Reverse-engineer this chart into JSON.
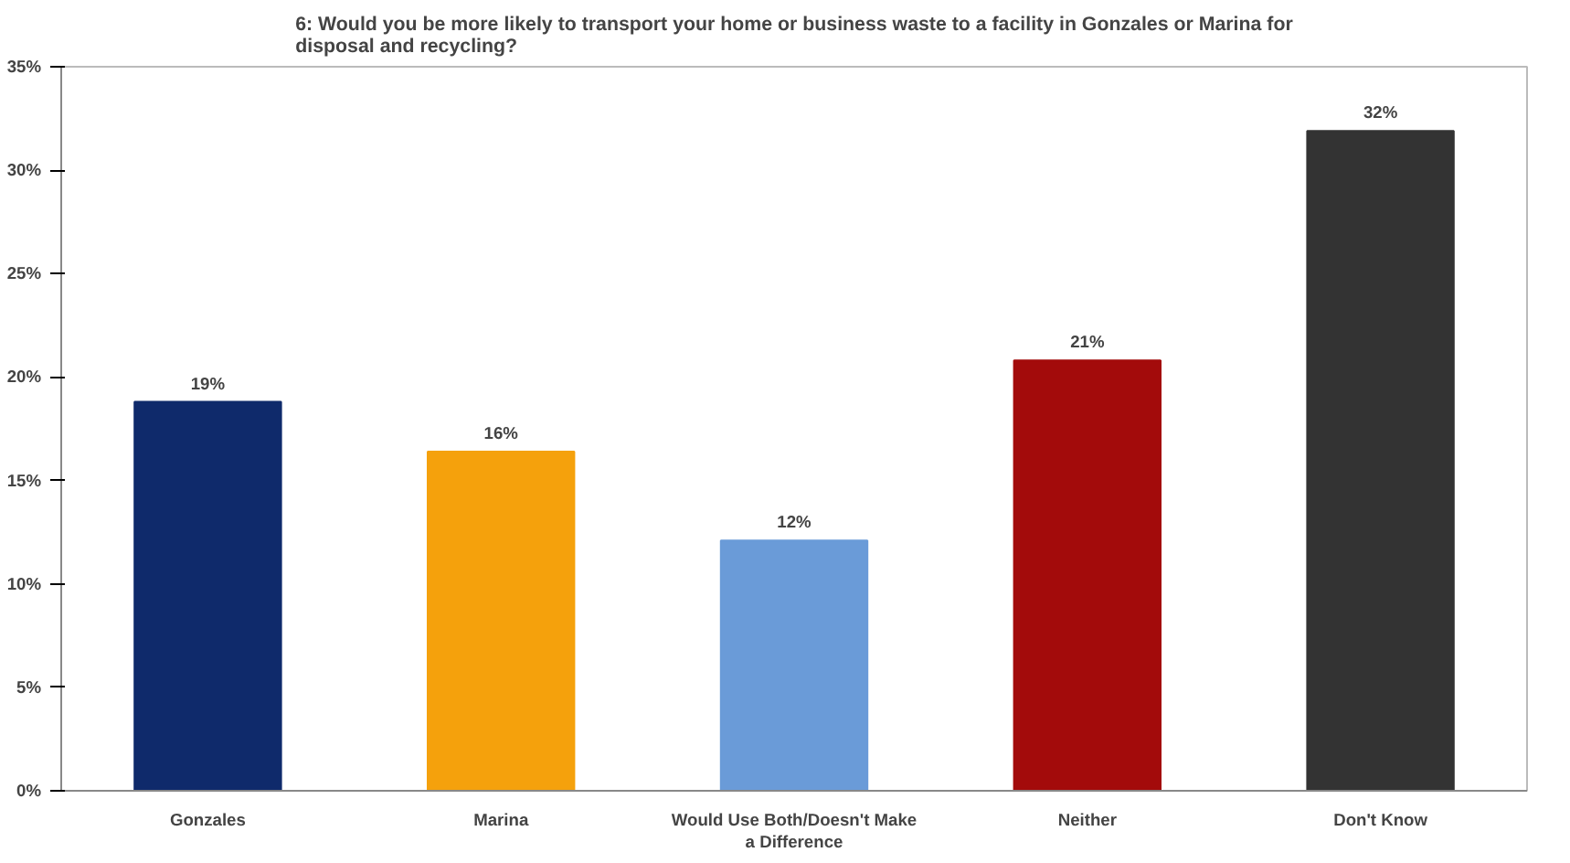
{
  "chart_data": {
    "type": "bar",
    "title": "6: Would you be more likely to transport your home or business waste to a facility in Gonzales or Marina for disposal and recycling?",
    "categories": [
      "Gonzales",
      "Marina",
      "Would Use Both/Doesn't Make a Difference",
      "Neither",
      "Don't Know"
    ],
    "values": [
      18.8,
      16.4,
      12.1,
      20.8,
      31.9
    ],
    "value_labels": [
      "19%",
      "16%",
      "12%",
      "21%",
      "32%"
    ],
    "colors": [
      "#0f2a6b",
      "#f5a10c",
      "#6a9bd8",
      "#a30b0b",
      "#333333"
    ],
    "ylim": [
      0,
      35
    ],
    "yticks": [
      {
        "value": 0,
        "label": "0%"
      },
      {
        "value": 5,
        "label": "5%"
      },
      {
        "value": 10,
        "label": "10%"
      },
      {
        "value": 15,
        "label": "15%"
      },
      {
        "value": 20,
        "label": "20%"
      },
      {
        "value": 25,
        "label": "25%"
      },
      {
        "value": 30,
        "label": "30%"
      },
      {
        "value": 35,
        "label": "35%"
      }
    ],
    "grid": false
  }
}
